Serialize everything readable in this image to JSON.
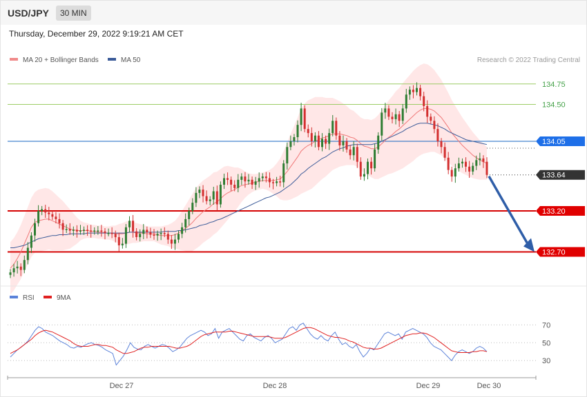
{
  "header": {
    "pair": "USD/JPY",
    "timeframe": "30 MIN"
  },
  "timestamp": "Thursday, December 29, 2022 9:19:21 AM CET",
  "legend": {
    "ma20": "MA 20 + Bollinger Bands",
    "ma50": "MA 50",
    "credit": "Research © 2022 Trading Central"
  },
  "rsi_legend": {
    "rsi": "RSI",
    "ma9": "9MA"
  },
  "colors": {
    "bull": "#2e7d32",
    "bear": "#d32f2f",
    "ma20": "#f07878",
    "bands": "#ffe3e3",
    "ma50": "#3a5a98",
    "pivot": "#d50000",
    "resistance_green": "#9ccc65",
    "blue_level": "#1565c0",
    "current": "#333333",
    "arrow": "#2f5ea8",
    "rsi": "#5b82d9",
    "rsi_ma": "#e02020"
  },
  "chart_data": [
    {
      "type": "candlestick",
      "title": "USD/JPY",
      "ylim": [
        132.3,
        134.95
      ],
      "levels": [
        {
          "value": 134.75,
          "label": "134.75",
          "kind": "resistance"
        },
        {
          "value": 134.5,
          "label": "134.50",
          "kind": "resistance"
        },
        {
          "value": 134.05,
          "label": "134.05",
          "kind": "pivot-blue"
        },
        {
          "value": 133.64,
          "label": "133.64",
          "kind": "current"
        },
        {
          "value": 133.2,
          "label": "133.20",
          "kind": "pivot-red"
        },
        {
          "value": 132.7,
          "label": "132.70",
          "kind": "pivot-red"
        }
      ],
      "x_ticks": [
        "Dec 27",
        "Dec 28",
        "Dec 29",
        "Dec 30"
      ],
      "close": [
        132.45,
        132.5,
        132.52,
        132.48,
        132.6,
        132.75,
        132.9,
        133.05,
        133.2,
        133.22,
        133.18,
        133.16,
        133.13,
        133.1,
        133.05,
        132.97,
        132.98,
        132.96,
        132.97,
        132.95,
        132.96,
        132.97,
        132.96,
        132.95,
        132.96,
        132.96,
        132.95,
        132.93,
        132.93,
        132.92,
        132.88,
        132.78,
        132.8,
        133.0,
        133.08,
        132.95,
        132.88,
        132.92,
        132.97,
        132.94,
        132.91,
        132.9,
        132.92,
        132.93,
        132.92,
        132.85,
        132.8,
        132.85,
        132.92,
        133.0,
        133.1,
        133.2,
        133.3,
        133.42,
        133.46,
        133.38,
        133.32,
        133.34,
        133.44,
        133.28,
        133.52,
        133.6,
        133.58,
        133.52,
        133.48,
        133.58,
        133.62,
        133.56,
        133.58,
        133.52,
        133.56,
        133.6,
        133.62,
        133.6,
        133.55,
        133.54,
        133.56,
        133.55,
        133.78,
        133.98,
        134.05,
        134.1,
        134.25,
        134.45,
        134.2,
        134.15,
        134.05,
        134.12,
        133.98,
        134.08,
        134.02,
        134.15,
        134.3,
        134.12,
        134.0,
        134.05,
        133.95,
        133.88,
        133.98,
        133.8,
        133.62,
        133.65,
        133.8,
        133.72,
        133.95,
        134.12,
        134.4,
        134.45,
        134.35,
        134.32,
        134.38,
        134.3,
        134.45,
        134.62,
        134.68,
        134.65,
        134.7,
        134.6,
        134.48,
        134.35,
        134.3,
        134.2,
        134.05,
        133.98,
        133.85,
        133.7,
        133.62,
        133.72,
        133.78,
        133.8,
        133.74,
        133.68,
        133.75,
        133.82,
        133.84,
        133.8,
        133.64
      ],
      "ma20": [
        132.5,
        132.55,
        132.62,
        132.7,
        132.8,
        132.9,
        133.0,
        133.06,
        133.08,
        133.09,
        133.1,
        133.1,
        133.08,
        133.06,
        133.04,
        133.02,
        133.0,
        132.98,
        132.97,
        132.96,
        132.96,
        132.96,
        132.96,
        132.95,
        132.95,
        132.94,
        132.94,
        132.93,
        132.93,
        132.93,
        132.92,
        132.92,
        132.92,
        132.93,
        132.94,
        132.94,
        132.93,
        132.93,
        132.93,
        132.92,
        132.92,
        132.92,
        132.91,
        132.9,
        132.9,
        132.9,
        132.9,
        132.91,
        132.93,
        132.96,
        132.99,
        133.02,
        133.06,
        133.11,
        133.15,
        133.19,
        133.22,
        133.25,
        133.29,
        133.31,
        133.35,
        133.39,
        133.42,
        133.44,
        133.46,
        133.49,
        133.51,
        133.52,
        133.53,
        133.54,
        133.55,
        133.56,
        133.57,
        133.57,
        133.57,
        133.57,
        133.58,
        133.59,
        133.63,
        133.68,
        133.74,
        133.8,
        133.86,
        133.93,
        133.97,
        134.0,
        134.02,
        134.05,
        134.07,
        134.09,
        134.1,
        134.12,
        134.14,
        134.14,
        134.14,
        134.13,
        134.12,
        134.1,
        134.09,
        134.06,
        134.02,
        133.99,
        133.98,
        133.96,
        133.96,
        133.98,
        134.02,
        134.06,
        134.1,
        134.13,
        134.17,
        134.2,
        134.24,
        134.28,
        134.32,
        134.36,
        134.4,
        134.43,
        134.45,
        134.45,
        134.44,
        134.42,
        134.38,
        134.34,
        134.28,
        134.22,
        134.15,
        134.1,
        134.05,
        134.0,
        133.96,
        133.92,
        133.88,
        133.85,
        133.82,
        133.8,
        133.78
      ],
      "ma50": [
        132.75,
        132.75,
        132.76,
        132.77,
        132.78,
        132.8,
        132.82,
        132.84,
        132.86,
        132.87,
        132.88,
        132.89,
        132.9,
        132.9,
        132.91,
        132.91,
        132.91,
        132.92,
        132.92,
        132.92,
        132.92,
        132.92,
        132.93,
        132.93,
        132.93,
        132.93,
        132.93,
        132.93,
        132.93,
        132.93,
        132.93,
        132.93,
        132.93,
        132.93,
        132.94,
        132.94,
        132.94,
        132.94,
        132.94,
        132.94,
        132.94,
        132.94,
        132.94,
        132.94,
        132.95,
        132.95,
        132.95,
        132.95,
        132.96,
        132.96,
        132.97,
        132.98,
        132.99,
        133.0,
        133.02,
        133.03,
        133.04,
        133.06,
        133.07,
        133.09,
        133.1,
        133.12,
        133.14,
        133.16,
        133.18,
        133.2,
        133.22,
        133.24,
        133.26,
        133.28,
        133.3,
        133.32,
        133.34,
        133.36,
        133.37,
        133.39,
        133.41,
        133.43,
        133.46,
        133.49,
        133.52,
        133.56,
        133.6,
        133.65,
        133.68,
        133.72,
        133.75,
        133.78,
        133.81,
        133.84,
        133.86,
        133.89,
        133.92,
        133.94,
        133.96,
        133.97,
        133.99,
        134.0,
        134.01,
        134.01,
        134.01,
        134.01,
        134.01,
        134.01,
        134.02,
        134.03,
        134.05,
        134.07,
        134.09,
        134.11,
        134.13,
        134.15,
        134.17,
        134.2,
        134.22,
        134.24,
        134.26,
        134.27,
        134.27,
        134.27,
        134.26,
        134.25,
        134.24,
        134.22,
        134.2,
        134.17,
        134.15,
        134.13,
        134.11,
        134.09,
        134.07,
        134.06,
        134.05,
        134.04,
        134.03,
        134.02,
        134.01
      ],
      "band_width": [
        0.32,
        0.32,
        0.32,
        0.33,
        0.34,
        0.35,
        0.36,
        0.37,
        0.38,
        0.38,
        0.38,
        0.37,
        0.36,
        0.34,
        0.32,
        0.3,
        0.27,
        0.24,
        0.2,
        0.16,
        0.12,
        0.1,
        0.09,
        0.08,
        0.08,
        0.08,
        0.08,
        0.08,
        0.08,
        0.09,
        0.1,
        0.12,
        0.13,
        0.14,
        0.14,
        0.13,
        0.12,
        0.11,
        0.1,
        0.09,
        0.09,
        0.09,
        0.1,
        0.11,
        0.12,
        0.13,
        0.15,
        0.17,
        0.2,
        0.24,
        0.28,
        0.32,
        0.35,
        0.37,
        0.38,
        0.38,
        0.38,
        0.38,
        0.38,
        0.37,
        0.36,
        0.35,
        0.33,
        0.3,
        0.27,
        0.24,
        0.2,
        0.16,
        0.13,
        0.11,
        0.1,
        0.1,
        0.1,
        0.11,
        0.13,
        0.16,
        0.2,
        0.25,
        0.3,
        0.35,
        0.4,
        0.44,
        0.48,
        0.52,
        0.54,
        0.55,
        0.55,
        0.54,
        0.52,
        0.5,
        0.48,
        0.46,
        0.44,
        0.42,
        0.4,
        0.38,
        0.36,
        0.34,
        0.33,
        0.32,
        0.32,
        0.33,
        0.34,
        0.35,
        0.37,
        0.39,
        0.41,
        0.43,
        0.45,
        0.47,
        0.49,
        0.5,
        0.52,
        0.53,
        0.54,
        0.55,
        0.55,
        0.55,
        0.55,
        0.54,
        0.52,
        0.5,
        0.48,
        0.46,
        0.44,
        0.42,
        0.4,
        0.38,
        0.36,
        0.34,
        0.32,
        0.3,
        0.28,
        0.26,
        0.24,
        0.22,
        0.2,
        0.19,
        0.18
      ]
    },
    {
      "type": "line",
      "title": "RSI",
      "ylim": [
        17,
        85
      ],
      "y_ticks": [
        30,
        50,
        70
      ],
      "series": [
        {
          "name": "RSI",
          "values": [
            34,
            38,
            42,
            45,
            48,
            52,
            58,
            64,
            68,
            66,
            62,
            60,
            58,
            55,
            52,
            50,
            48,
            45,
            44,
            46,
            45,
            47,
            49,
            50,
            48,
            47,
            45,
            42,
            40,
            38,
            25,
            30,
            35,
            42,
            50,
            45,
            43,
            42,
            46,
            48,
            46,
            44,
            46,
            48,
            47,
            44,
            40,
            42,
            45,
            50,
            55,
            58,
            60,
            62,
            64,
            62,
            58,
            60,
            66,
            55,
            62,
            64,
            66,
            62,
            58,
            54,
            52,
            58,
            60,
            56,
            54,
            52,
            56,
            58,
            55,
            50,
            52,
            54,
            60,
            66,
            68,
            64,
            70,
            72,
            66,
            60,
            56,
            54,
            58,
            54,
            52,
            58,
            62,
            54,
            48,
            50,
            46,
            44,
            48,
            40,
            34,
            38,
            44,
            42,
            48,
            54,
            60,
            62,
            60,
            58,
            60,
            54,
            62,
            64,
            66,
            64,
            62,
            60,
            56,
            50,
            46,
            44,
            42,
            38,
            34,
            30,
            36,
            40,
            42,
            40,
            38,
            40,
            44,
            46,
            44,
            40
          ]
        },
        {
          "name": "9MA",
          "values": [
            38,
            40,
            42,
            45,
            48,
            51,
            54,
            58,
            61,
            63,
            64,
            63,
            62,
            60,
            58,
            56,
            54,
            52,
            49,
            47,
            46,
            46,
            46,
            47,
            48,
            48,
            47,
            47,
            46,
            45,
            42,
            40,
            38,
            38,
            39,
            40,
            42,
            44,
            45,
            45,
            46,
            46,
            46,
            46,
            46,
            46,
            45,
            44,
            44,
            45,
            46,
            48,
            51,
            54,
            57,
            59,
            60,
            61,
            62,
            62,
            62,
            62,
            63,
            63,
            62,
            61,
            60,
            59,
            58,
            57,
            57,
            57,
            57,
            57,
            56,
            55,
            55,
            55,
            56,
            58,
            60,
            62,
            64,
            66,
            67,
            67,
            66,
            64,
            62,
            60,
            58,
            57,
            56,
            56,
            55,
            54,
            52,
            51,
            49,
            47,
            45,
            44,
            44,
            43,
            43,
            44,
            46,
            48,
            50,
            52,
            54,
            56,
            58,
            59,
            60,
            60,
            61,
            61,
            60,
            58,
            56,
            53,
            50,
            47,
            44,
            41,
            40,
            39,
            39,
            39,
            39,
            40,
            40,
            41,
            41,
            40
          ]
        }
      ]
    }
  ]
}
